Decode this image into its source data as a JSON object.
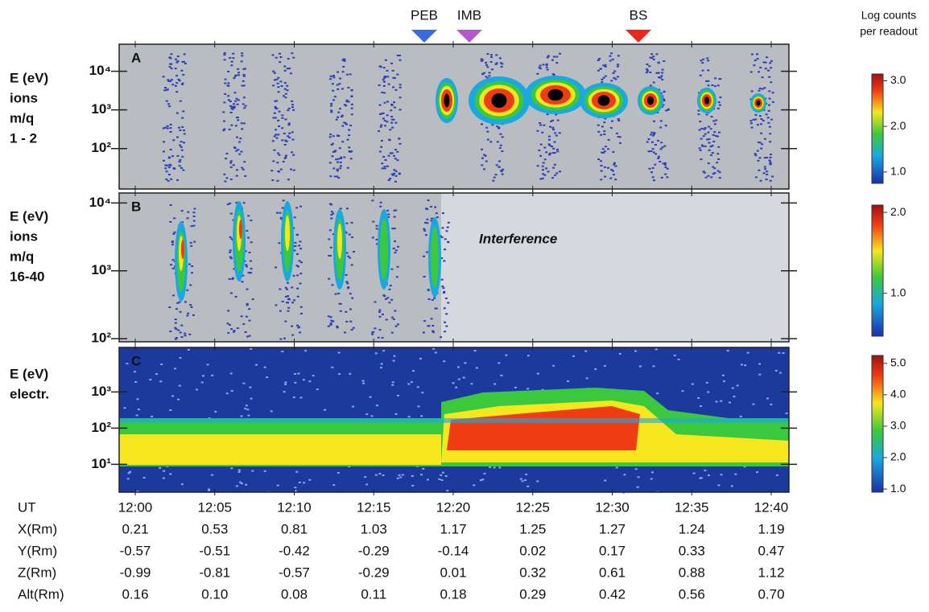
{
  "chart_data": {
    "type": "spectrogram",
    "markers": [
      {
        "label": "PEB",
        "color": "#3a6bd8"
      },
      {
        "label": "IMB",
        "color": "#b35ac8"
      },
      {
        "label": "BS",
        "color": "#e8281e"
      }
    ],
    "colorbar_title": [
      "Log counts",
      "per readout"
    ],
    "x_label": "UT",
    "categories": [
      "12:00",
      "12:05",
      "12:10",
      "12:15",
      "12:20",
      "12:25",
      "12:30",
      "12:35",
      "12:40"
    ],
    "panels": [
      {
        "letter": "A",
        "ylabel": [
          "E (eV)",
          "ions",
          "m/q",
          "1 - 2"
        ],
        "log": true,
        "ylim": [
          9,
          50000
        ],
        "yticks": [
          {
            "value": 100,
            "label": "10²"
          },
          {
            "value": 1000,
            "label": "10³"
          },
          {
            "value": 10000,
            "label": "10⁴"
          }
        ],
        "clim": [
          0.75,
          3.15
        ],
        "cticks": [
          {
            "value": 1,
            "label": "1.0"
          },
          {
            "value": 2,
            "label": "2.0"
          },
          {
            "value": 3,
            "label": "3.0"
          }
        ]
      },
      {
        "letter": "B",
        "ylabel": [
          "E (eV)",
          "ions",
          "m/q",
          "16-40"
        ],
        "log": true,
        "ylim": [
          90,
          14000
        ],
        "yticks": [
          {
            "value": 100,
            "label": "10²"
          },
          {
            "value": 1000,
            "label": "10³"
          },
          {
            "value": 10000,
            "label": "10⁴"
          }
        ],
        "annotation": "Interference",
        "clim": [
          0.47,
          2.09
        ],
        "cticks": [
          {
            "value": 1,
            "label": "1.0"
          },
          {
            "value": 2,
            "label": "2.0"
          }
        ]
      },
      {
        "letter": "C",
        "ylabel": [
          "E (eV)",
          "electr."
        ],
        "log": true,
        "ylim": [
          1.7,
          17000
        ],
        "yticks": [
          {
            "value": 10,
            "label": "10¹"
          },
          {
            "value": 100,
            "label": "10²"
          },
          {
            "value": 1000,
            "label": "10³"
          }
        ],
        "clim": [
          0.9,
          5.25
        ],
        "cticks": [
          {
            "value": 1,
            "label": "1.0"
          },
          {
            "value": 2,
            "label": "2.0"
          },
          {
            "value": 3,
            "label": "3.0"
          },
          {
            "value": 4,
            "label": "4.0"
          },
          {
            "value": 5,
            "label": "5.0"
          }
        ]
      }
    ],
    "table": [
      {
        "label": "X(Rm)",
        "values": [
          "0.21",
          "0.53",
          "0.81",
          "1.03",
          "1.17",
          "1.25",
          "1.27",
          "1.24",
          "1.19"
        ]
      },
      {
        "label": "Y(Rm)",
        "values": [
          "-0.57",
          "-0.51",
          "-0.42",
          "-0.29",
          "-0.14",
          "0.02",
          "0.17",
          "0.33",
          "0.47"
        ]
      },
      {
        "label": "Z(Rm)",
        "values": [
          "-0.99",
          "-0.81",
          "-0.57",
          "-0.29",
          "0.01",
          "0.32",
          "0.61",
          "0.88",
          "1.12"
        ]
      },
      {
        "label": "Alt(Rm)",
        "values": [
          "0.16",
          "0.10",
          "0.08",
          "0.11",
          "0.18",
          "0.29",
          "0.42",
          "0.56",
          "0.70"
        ]
      }
    ]
  }
}
